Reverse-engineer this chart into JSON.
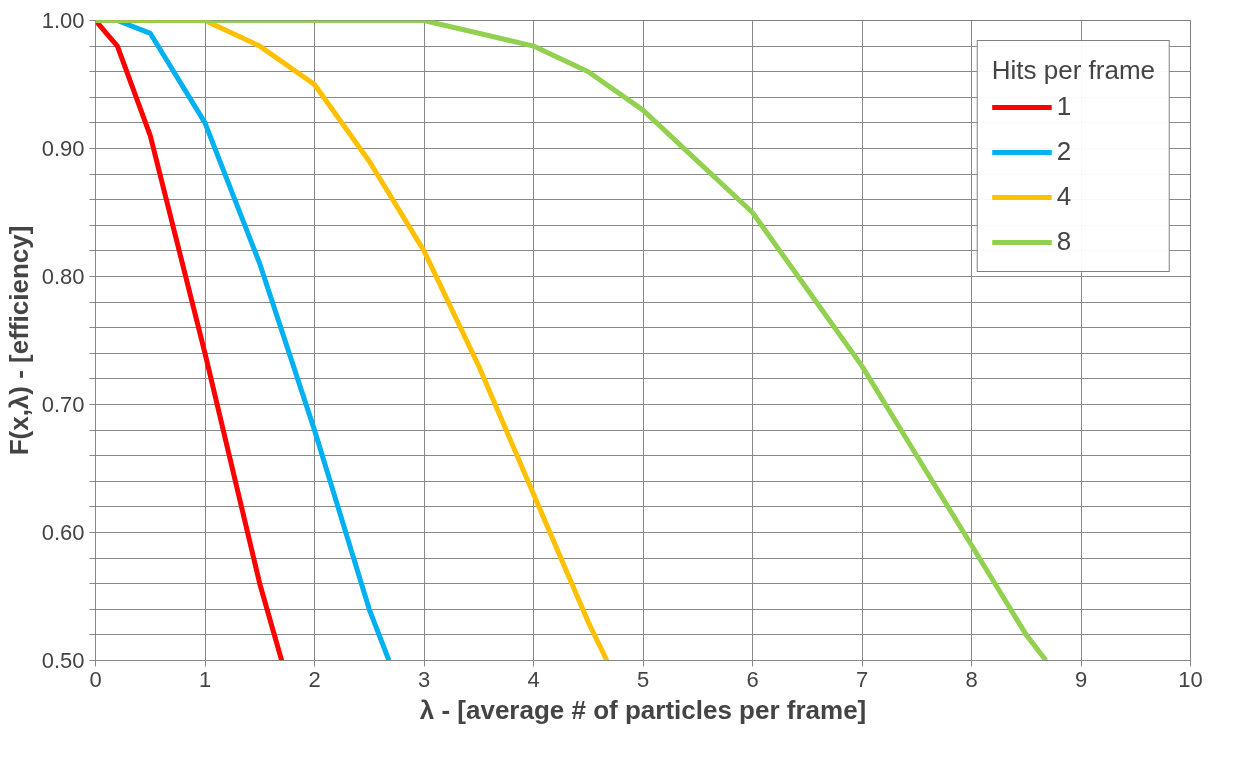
{
  "chart_data": {
    "type": "line",
    "xlabel": "λ - [average # of particles per frame]",
    "ylabel": "F(x,λ) - [efficiency]",
    "legend_title": "Hits per frame",
    "legend": "top right",
    "grid": true,
    "line_style": "solid",
    "xlim": [
      0,
      10
    ],
    "xticks": [
      0,
      1,
      2,
      3,
      4,
      5,
      6,
      7,
      8,
      9,
      10
    ],
    "ylim": [
      0.5,
      1.0
    ],
    "yticks": [
      {
        "value": 0.5,
        "label": "0.50"
      },
      {
        "value": 0.52,
        "label": null
      },
      {
        "value": 0.54,
        "label": null
      },
      {
        "value": 0.56,
        "label": null
      },
      {
        "value": 0.58,
        "label": null
      },
      {
        "value": 0.6,
        "label": "0.60"
      },
      {
        "value": 0.62,
        "label": null
      },
      {
        "value": 0.64,
        "label": null
      },
      {
        "value": 0.66,
        "label": null
      },
      {
        "value": 0.68,
        "label": null
      },
      {
        "value": 0.7,
        "label": "0.70"
      },
      {
        "value": 0.72,
        "label": null
      },
      {
        "value": 0.74,
        "label": null
      },
      {
        "value": 0.76,
        "label": null
      },
      {
        "value": 0.78,
        "label": null
      },
      {
        "value": 0.8,
        "label": "0.80"
      },
      {
        "value": 0.82,
        "label": null
      },
      {
        "value": 0.84,
        "label": null
      },
      {
        "value": 0.86,
        "label": null
      },
      {
        "value": 0.88,
        "label": null
      },
      {
        "value": 0.9,
        "label": "0.90"
      },
      {
        "value": 0.92,
        "label": null
      },
      {
        "value": 0.94,
        "label": null
      },
      {
        "value": 0.96,
        "label": null
      },
      {
        "value": 0.98,
        "label": null
      },
      {
        "value": 1.0,
        "label": "1.00"
      }
    ],
    "series": [
      {
        "name": "1",
        "color": "#ff0000",
        "x": [
          0,
          0.1,
          0.2,
          0.5,
          1,
          1.5,
          1.7
        ],
        "values": [
          1.0,
          0.99,
          0.98,
          0.91,
          0.74,
          0.56,
          0.5
        ]
      },
      {
        "name": "2",
        "color": "#00b0f0",
        "x": [
          0,
          0.2,
          0.5,
          1,
          1.5,
          2,
          2.5,
          2.68
        ],
        "values": [
          1.0,
          1.0,
          0.99,
          0.92,
          0.81,
          0.68,
          0.54,
          0.5
        ]
      },
      {
        "name": "4",
        "color": "#ffc000",
        "x": [
          0,
          1,
          1.5,
          2,
          2.5,
          3,
          3.5,
          4,
          4.5,
          4.67
        ],
        "values": [
          1.0,
          1.0,
          0.98,
          0.95,
          0.89,
          0.82,
          0.73,
          0.63,
          0.53,
          0.5
        ]
      },
      {
        "name": "8",
        "color": "#92d050",
        "x": [
          0,
          1,
          2,
          3,
          3.5,
          4,
          4.5,
          5,
          5.5,
          6,
          6.5,
          7,
          7.5,
          8,
          8.5,
          8.68
        ],
        "values": [
          1.0,
          1.0,
          1.0,
          1.0,
          0.99,
          0.98,
          0.96,
          0.93,
          0.89,
          0.85,
          0.79,
          0.73,
          0.66,
          0.59,
          0.52,
          0.5
        ]
      }
    ]
  }
}
